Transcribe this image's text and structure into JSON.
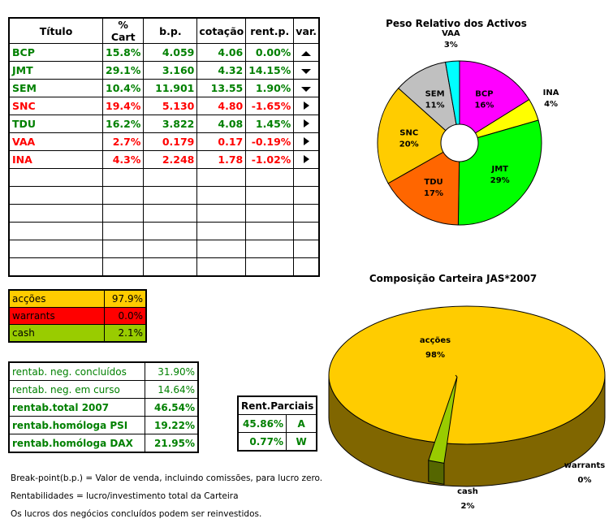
{
  "table": {
    "headers": [
      "Título",
      "% Cart",
      "b.p.",
      "cotação",
      "rent.p.",
      "var."
    ],
    "rows": [
      {
        "titulo": "BCP",
        "cart": "15.8%",
        "bp": "4.059",
        "cot": "4.06",
        "rent": "0.00%",
        "var": "up",
        "color": "green"
      },
      {
        "titulo": "JMT",
        "cart": "29.1%",
        "bp": "3.160",
        "cot": "4.32",
        "rent": "14.15%",
        "var": "down",
        "color": "green"
      },
      {
        "titulo": "SEM",
        "cart": "10.4%",
        "bp": "11.901",
        "cot": "13.55",
        "rent": "1.90%",
        "var": "down",
        "color": "green"
      },
      {
        "titulo": "SNC",
        "cart": "19.4%",
        "bp": "5.130",
        "cot": "4.80",
        "rent": "-1.65%",
        "var": "right",
        "color": "red"
      },
      {
        "titulo": "TDU",
        "cart": "16.2%",
        "bp": "3.822",
        "cot": "4.08",
        "rent": "1.45%",
        "var": "right",
        "color": "green"
      },
      {
        "titulo": "VAA",
        "cart": "2.7%",
        "bp": "0.179",
        "cot": "0.17",
        "rent": "-0.19%",
        "var": "right",
        "color": "red"
      },
      {
        "titulo": "INA",
        "cart": "4.3%",
        "bp": "2.248",
        "cot": "1.78",
        "rent": "-1.02%",
        "var": "right",
        "color": "red"
      }
    ],
    "empty_rows": 6
  },
  "allocation": [
    {
      "label": "acções",
      "value": "97.9%",
      "color": "#FFCC00"
    },
    {
      "label": "warrants",
      "value": "0.0%",
      "color": "#FF0000"
    },
    {
      "label": "cash",
      "value": "2.1%",
      "color": "#99CC00"
    }
  ],
  "rentab": [
    {
      "label": "rentab. neg. concluídos",
      "value": "31.90%",
      "bold": false
    },
    {
      "label": "rentab. neg. em curso",
      "value": "14.64%",
      "bold": false
    },
    {
      "label": "rentab.total 2007",
      "value": "46.54%",
      "bold": true
    },
    {
      "label": "rentab.homóloga PSI",
      "value": "19.22%",
      "bold": true
    },
    {
      "label": "rentab.homóloga DAX",
      "value": "21.95%",
      "bold": true
    }
  ],
  "parciais": {
    "title": "Rent.Parciais",
    "rows": [
      {
        "value": "45.86%",
        "code": "A"
      },
      {
        "value": "0.77%",
        "code": "W"
      }
    ]
  },
  "notes": [
    "Break-point(b.p.) = Valor de venda, incluindo comissões, para lucro zero.",
    "Rentabilidades = lucro/investimento total da Carteira",
    "Os lucros dos negócios concluídos podem ser reinvestidos."
  ],
  "chart_data": [
    {
      "type": "pie",
      "title": "Peso Relativo dos Activos",
      "donut": true,
      "slices": [
        {
          "label": "BCP",
          "value": 15.8,
          "pct": "16%",
          "color": "#FF00FF"
        },
        {
          "label": "INA",
          "value": 4.3,
          "pct": "4%",
          "color": "#FFFF00"
        },
        {
          "label": "JMT",
          "value": 29.1,
          "pct": "29%",
          "color": "#00FF00"
        },
        {
          "label": "TDU",
          "value": 16.2,
          "pct": "17%",
          "color": "#FF6600"
        },
        {
          "label": "SNC",
          "value": 19.4,
          "pct": "20%",
          "color": "#FFCC00"
        },
        {
          "label": "SEM",
          "value": 10.4,
          "pct": "11%",
          "color": "#C0C0C0"
        },
        {
          "label": "VAA",
          "value": 2.7,
          "pct": "3%",
          "color": "#00FFFF"
        }
      ]
    },
    {
      "type": "pie",
      "title": "Composição Carteira JAS*2007",
      "style": "3d",
      "slices": [
        {
          "label": "acções",
          "value": 97.9,
          "pct": "98%",
          "color": "#FFCC00"
        },
        {
          "label": "warrants",
          "value": 0.0,
          "pct": "0%",
          "color": "#FF0000"
        },
        {
          "label": "cash",
          "value": 2.1,
          "pct": "2%",
          "color": "#99CC00"
        }
      ]
    }
  ]
}
